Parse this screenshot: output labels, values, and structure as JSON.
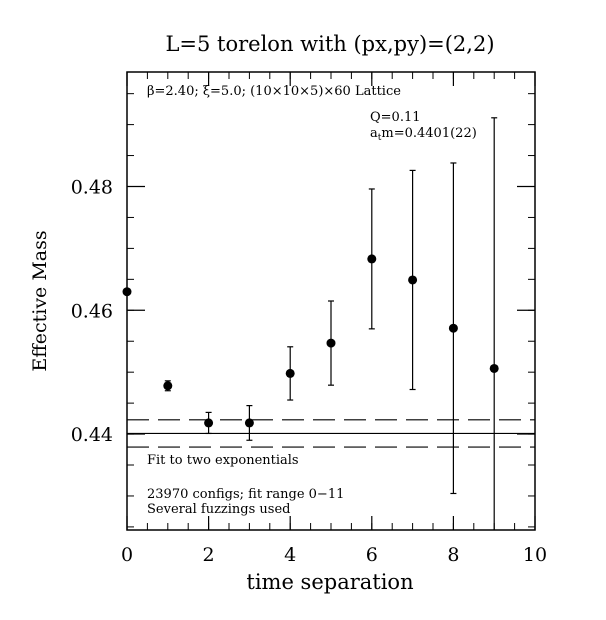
{
  "chart_data": {
    "type": "scatter",
    "title": "L=5 torelon with (px,py)=(2,2)",
    "xlabel": "time separation",
    "ylabel": "Effective Mass",
    "xlim": [
      0,
      10
    ],
    "ylim": [
      0.4245,
      0.4985
    ],
    "xticks": [
      0,
      2,
      4,
      6,
      8,
      10
    ],
    "xtick_labels": [
      "0",
      "2",
      "4",
      "6",
      "8",
      "10"
    ],
    "yticks": [
      0.44,
      0.46,
      0.48
    ],
    "ytick_labels": [
      "0.44",
      "0.46",
      "0.48"
    ],
    "annotations": {
      "lattice": "β=2.40; ξ=5.0; (10×10×5)×60 Lattice",
      "q": "Q=0.11",
      "mass_prefix": "a",
      "mass_sub": "t",
      "mass_suffix": "m=0.4401(22)",
      "fit": "Fit to two exponentials",
      "configs": "23970 configs; fit range 0−11",
      "fuzzings": "Several fuzzings used"
    },
    "fit": {
      "value": 0.4401,
      "error": 0.0022
    },
    "points": [
      {
        "x": 0,
        "y": 0.463,
        "err": 0.0003
      },
      {
        "x": 1,
        "y": 0.4478,
        "err": 0.0008
      },
      {
        "x": 2,
        "y": 0.4418,
        "err": 0.0017
      },
      {
        "x": 3,
        "y": 0.4418,
        "err": 0.0028
      },
      {
        "x": 4,
        "y": 0.4498,
        "err": 0.0043
      },
      {
        "x": 5,
        "y": 0.4547,
        "err": 0.0068
      },
      {
        "x": 6,
        "y": 0.4683,
        "err": 0.0113
      },
      {
        "x": 7,
        "y": 0.4649,
        "err": 0.0177
      },
      {
        "x": 8,
        "y": 0.4571,
        "err": 0.0267
      },
      {
        "x": 9,
        "y": 0.4506,
        "err": 0.0405
      }
    ],
    "grid": false,
    "legend": "none"
  }
}
